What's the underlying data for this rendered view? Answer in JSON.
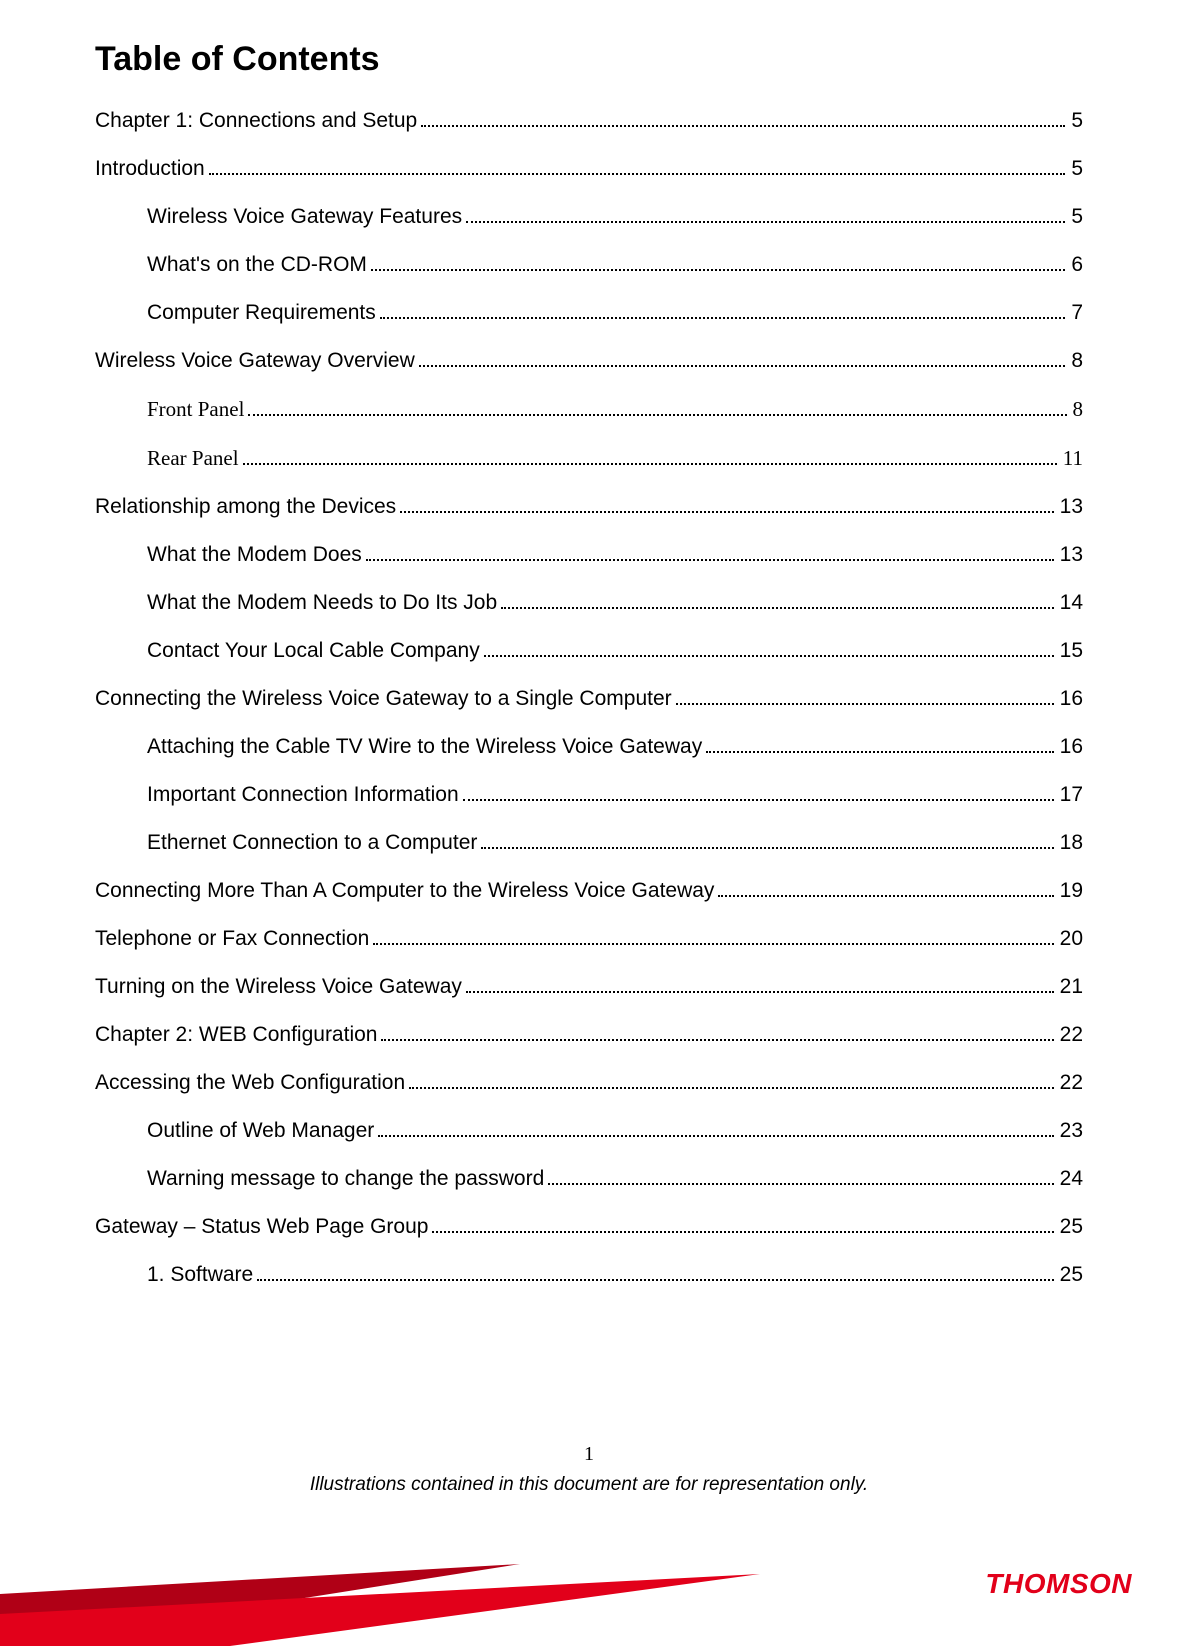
{
  "title": "Table of Contents",
  "toc": [
    {
      "label": "Chapter 1: Connections and Setup",
      "page": "5",
      "level": 0,
      "serif": false
    },
    {
      "label": "Introduction",
      "page": "5",
      "level": 0,
      "serif": false
    },
    {
      "label": "Wireless Voice Gateway Features",
      "page": "5",
      "level": 1,
      "serif": false
    },
    {
      "label": "What's on the CD-ROM",
      "page": "6",
      "level": 1,
      "serif": false
    },
    {
      "label": "Computer Requirements",
      "page": "7",
      "level": 1,
      "serif": false
    },
    {
      "label": "Wireless Voice Gateway Overview",
      "page": "8",
      "level": 0,
      "serif": false
    },
    {
      "label": "Front Panel",
      "page": "8",
      "level": 1,
      "serif": true
    },
    {
      "label": "Rear Panel",
      "page": "11",
      "level": 1,
      "serif": true
    },
    {
      "label": "Relationship among the Devices",
      "page": "13",
      "level": 0,
      "serif": false
    },
    {
      "label": "What the Modem Does",
      "page": "13",
      "level": 1,
      "serif": false
    },
    {
      "label": "What the Modem Needs to Do Its Job",
      "page": "14",
      "level": 1,
      "serif": false
    },
    {
      "label": "Contact Your Local Cable Company",
      "page": "15",
      "level": 1,
      "serif": false
    },
    {
      "label": "Connecting the Wireless Voice Gateway to a Single Computer",
      "page": "16",
      "level": 0,
      "serif": false
    },
    {
      "label": "Attaching the Cable TV Wire to the Wireless Voice Gateway",
      "page": "16",
      "level": 1,
      "serif": false
    },
    {
      "label": "Important Connection Information",
      "page": "17",
      "level": 1,
      "serif": false
    },
    {
      "label": "Ethernet Connection to a Computer",
      "page": "18",
      "level": 1,
      "serif": false
    },
    {
      "label": "Connecting More Than A Computer to the Wireless Voice Gateway",
      "page": "19",
      "level": 0,
      "serif": false
    },
    {
      "label": "Telephone or Fax Connection",
      "page": "20",
      "level": 0,
      "serif": false
    },
    {
      "label": "Turning on the Wireless Voice Gateway",
      "page": "21",
      "level": 0,
      "serif": false
    },
    {
      "label": "Chapter 2: WEB Configuration",
      "page": "22",
      "level": 0,
      "serif": false
    },
    {
      "label": "Accessing the Web Configuration",
      "page": "22",
      "level": 0,
      "serif": false
    },
    {
      "label": "Outline of Web Manager",
      "page": "23",
      "level": 1,
      "serif": false
    },
    {
      "label": "Warning message to change the password",
      "page": "24",
      "level": 1,
      "serif": false
    },
    {
      "label": "Gateway – Status Web Page Group",
      "page": "25",
      "level": 0,
      "serif": false
    },
    {
      "label": "1. Software",
      "page": "25",
      "level": 1,
      "serif": false
    }
  ],
  "footer": {
    "page_number": "1",
    "note": "Illustrations contained in this document are for representation only."
  },
  "branding": {
    "logo_text": "THOMSON",
    "logo_color": "#e2001a",
    "banner_colors": {
      "dark": "#b00016",
      "mid": "#e2001a"
    }
  },
  "typography": {
    "body_font": "Trebuchet MS",
    "serif_font": "Times New Roman",
    "title_fontsize": 34,
    "toc_fontsize": 21,
    "footer_fontsize": 19
  },
  "colors": {
    "text": "#000000",
    "background": "#ffffff"
  }
}
